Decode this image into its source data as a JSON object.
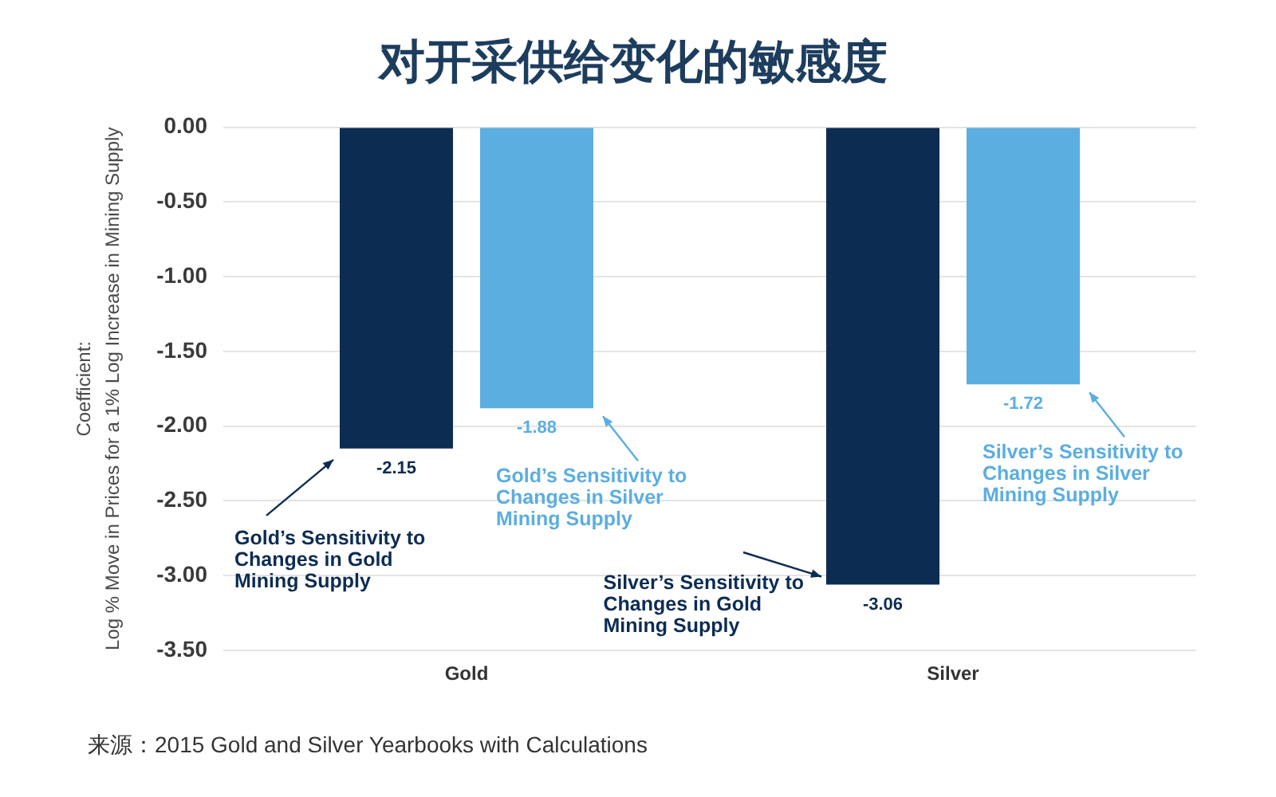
{
  "chart_data": {
    "type": "bar",
    "title": "对开采供给变化的敏感度",
    "ylabel": "Coefficient:\nLog % Move in Prices for a 1% Log Increase in Mining Supply",
    "categories": [
      "Gold",
      "Silver"
    ],
    "series": [
      {
        "color": "#0c2c52",
        "values": [
          -2.15,
          -3.06
        ]
      },
      {
        "color": "#5baee0",
        "values": [
          -1.88,
          -1.72
        ]
      }
    ],
    "ylim": [
      -3.5,
      0
    ],
    "yticks": [
      {
        "value": 0,
        "label": "0.00"
      },
      {
        "value": -0.5,
        "label": "-0.50"
      },
      {
        "value": -1,
        "label": "-1.00"
      },
      {
        "value": -1.5,
        "label": "-1.50"
      },
      {
        "value": -2,
        "label": "-2.00"
      },
      {
        "value": -2.5,
        "label": "-2.50"
      },
      {
        "value": -3,
        "label": "-3.00"
      },
      {
        "value": -3.5,
        "label": "-3.50"
      }
    ],
    "grid": "y",
    "data_labels": true,
    "annotations": [
      "Gold’s Sensitivity to Changes in Gold Mining Supply",
      "Gold’s Sensitivity to Changes in Silver Mining Supply",
      "Silver’s Sensitivity to Changes in Gold Mining Supply",
      "Silver’s Sensitivity to Changes in Silver Mining Supply",
      "来源：2015 Gold and Silver Yearbooks with Calculations"
    ]
  }
}
